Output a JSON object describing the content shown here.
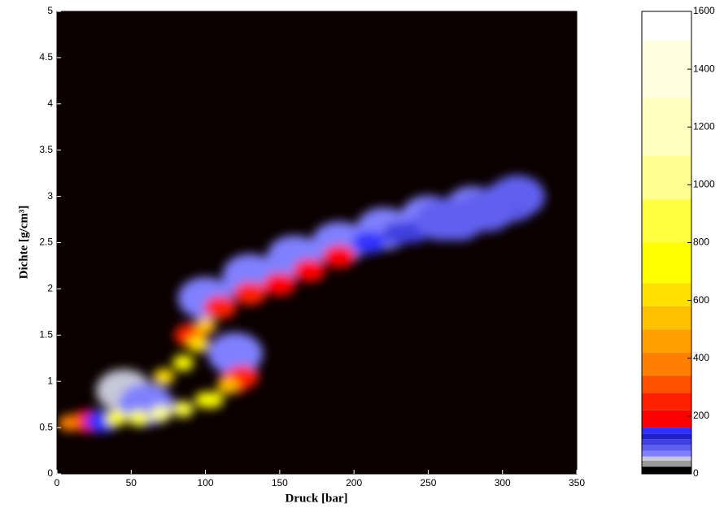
{
  "chart_data": {
    "type": "heatmap",
    "x_label": "Druck [bar]",
    "y_label": "Dichte [g/cm³]",
    "xlim": [
      0,
      350
    ],
    "xticks": [
      0,
      50,
      100,
      150,
      200,
      250,
      300,
      350
    ],
    "ylim": [
      0,
      5
    ],
    "yticks": [
      0,
      0.5,
      1,
      1.5,
      2,
      2.5,
      3,
      3.5,
      4,
      4.5,
      5
    ],
    "background": "#0a0000",
    "cells": {
      "x": [
        45,
        60,
        120,
        100,
        130,
        160,
        190,
        220,
        250,
        280,
        305,
        310,
        20,
        30,
        300,
        270,
        240,
        230,
        260,
        290,
        210,
        190,
        170,
        120,
        150,
        130,
        110,
        8,
        90,
        125,
        115,
        100,
        95,
        105,
        72,
        85,
        40,
        100,
        85,
        55,
        70
      ],
      "y": [
        0.9,
        0.75,
        1.3,
        1.9,
        2.15,
        2.35,
        2.5,
        2.65,
        2.78,
        2.88,
        2.95,
        3.0,
        0.57,
        0.57,
        2.85,
        2.75,
        2.62,
        2.6,
        2.75,
        2.85,
        2.5,
        2.35,
        2.2,
        1.0,
        2.05,
        1.95,
        1.8,
        0.55,
        1.5,
        1.05,
        0.95,
        1.6,
        1.4,
        0.8,
        1.05,
        1.2,
        0.6,
        0.8,
        0.7,
        0.6,
        0.65
      ],
      "values": [
        50,
        60,
        60,
        60,
        60,
        60,
        60,
        60,
        60,
        60,
        80,
        90,
        200,
        150,
        100,
        90,
        100,
        100,
        90,
        90,
        140,
        160,
        180,
        200,
        200,
        220,
        250,
        400,
        250,
        250,
        500,
        500,
        600,
        700,
        600,
        700,
        700,
        700,
        900,
        900,
        1000
      ]
    },
    "colorbar": {
      "clim": [
        0,
        1600
      ],
      "ticks": [
        0,
        200,
        400,
        600,
        800,
        1000,
        1200,
        1400,
        1600
      ],
      "stops": [
        {
          "value": 0,
          "color": "#000000"
        },
        {
          "value": 25,
          "color": "#9a9a9a"
        },
        {
          "value": 45,
          "color": "#c8c8d8"
        },
        {
          "value": 60,
          "color": "#8080ff"
        },
        {
          "value": 80,
          "color": "#6060f0"
        },
        {
          "value": 100,
          "color": "#4040e0"
        },
        {
          "value": 120,
          "color": "#2020c8"
        },
        {
          "value": 140,
          "color": "#3030ff"
        },
        {
          "value": 160,
          "color": "#ff0000"
        },
        {
          "value": 220,
          "color": "#ff2000"
        },
        {
          "value": 280,
          "color": "#ff5000"
        },
        {
          "value": 340,
          "color": "#ff8000"
        },
        {
          "value": 420,
          "color": "#ffa000"
        },
        {
          "value": 500,
          "color": "#ffc000"
        },
        {
          "value": 580,
          "color": "#ffe000"
        },
        {
          "value": 660,
          "color": "#ffff00"
        },
        {
          "value": 800,
          "color": "#ffff40"
        },
        {
          "value": 950,
          "color": "#ffff90"
        },
        {
          "value": 1100,
          "color": "#ffffc0"
        },
        {
          "value": 1300,
          "color": "#ffffe0"
        },
        {
          "value": 1500,
          "color": "#ffffff"
        }
      ]
    }
  }
}
